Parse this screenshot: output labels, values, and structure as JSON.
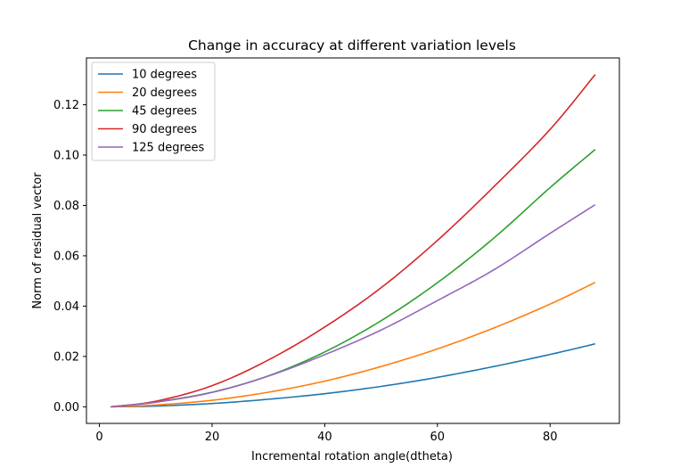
{
  "chart_data": {
    "type": "line",
    "title": "Change in accuracy at different variation levels",
    "xlabel": "Incremental rotation angle(dtheta)",
    "ylabel": "Norm of residual vector",
    "xlim": [
      -2.3,
      92.3
    ],
    "ylim": [
      -0.0066,
      0.1386
    ],
    "xticks": [
      0,
      20,
      40,
      60,
      80
    ],
    "yticks": [
      0.0,
      0.02,
      0.04,
      0.06,
      0.08,
      0.1,
      0.12
    ],
    "ytick_labels": [
      "0.00",
      "0.02",
      "0.04",
      "0.06",
      "0.08",
      "0.10",
      "0.12"
    ],
    "legend_position": "upper-left",
    "grid": false,
    "x": [
      2,
      10,
      20,
      30,
      40,
      50,
      60,
      70,
      80,
      88
    ],
    "series": [
      {
        "name": "10 degrees",
        "color": "#1f77b4",
        "values": [
          0.0,
          0.0003,
          0.0013,
          0.003,
          0.0052,
          0.0081,
          0.0117,
          0.016,
          0.0208,
          0.025
        ]
      },
      {
        "name": "20 degrees",
        "color": "#ff7f0e",
        "values": [
          0.0,
          0.0007,
          0.0026,
          0.0058,
          0.0102,
          0.016,
          0.023,
          0.0313,
          0.0408,
          0.0494
        ]
      },
      {
        "name": "45 degrees",
        "color": "#2ca02c",
        "values": [
          0.0,
          0.0019,
          0.0058,
          0.0123,
          0.0218,
          0.0342,
          0.0493,
          0.067,
          0.0871,
          0.1022
        ]
      },
      {
        "name": "90 degrees",
        "color": "#d62728",
        "values": [
          0.0,
          0.0022,
          0.0084,
          0.0186,
          0.0317,
          0.0473,
          0.0661,
          0.0874,
          0.1102,
          0.132
        ]
      },
      {
        "name": "125 degrees",
        "color": "#9467bd",
        "values": [
          0.0,
          0.0018,
          0.0057,
          0.0122,
          0.0207,
          0.0305,
          0.0422,
          0.0544,
          0.0689,
          0.0803
        ]
      }
    ]
  }
}
